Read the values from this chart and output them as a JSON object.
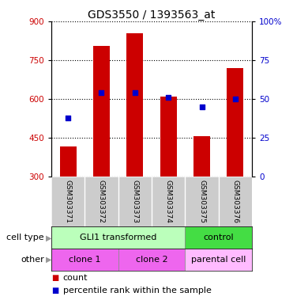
{
  "title": "GDS3550 / 1393563_at",
  "samples": [
    "GSM303371",
    "GSM303372",
    "GSM303373",
    "GSM303374",
    "GSM303375",
    "GSM303376"
  ],
  "counts": [
    415,
    805,
    855,
    610,
    455,
    720
  ],
  "percentiles": [
    38,
    54,
    54,
    51,
    45,
    50
  ],
  "ymin": 300,
  "ymax": 900,
  "yticks_left": [
    300,
    450,
    600,
    750,
    900
  ],
  "yticks_right": [
    0,
    25,
    50,
    75,
    100
  ],
  "bar_color": "#cc0000",
  "dot_color": "#0000cc",
  "bar_width": 0.5,
  "cell_type_gli_color": "#bbffbb",
  "cell_type_ctrl_color": "#44dd44",
  "other_clone_color": "#ee66ee",
  "other_parental_color": "#ffbbff",
  "sample_bg_color": "#cccccc",
  "legend_count_label": "count",
  "legend_pct_label": "percentile rank within the sample",
  "cell_type_row_label": "cell type",
  "other_row_label": "other",
  "title_fontsize": 10,
  "tick_fontsize": 7.5,
  "sample_fontsize": 6.5,
  "row_label_fontsize": 8,
  "annotation_fontsize": 8,
  "cell_fontsize": 8
}
